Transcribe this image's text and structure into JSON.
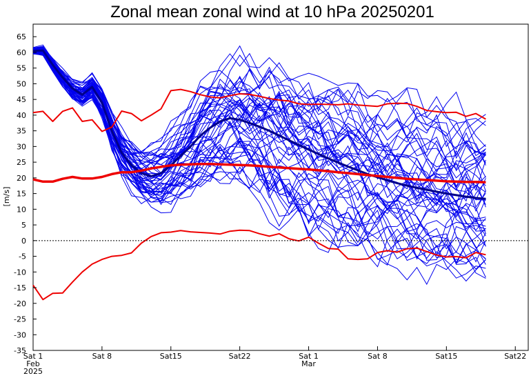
{
  "chart_data": {
    "type": "line",
    "title": "Zonal mean zonal wind at 10 hPa 20250201",
    "xlabel": "",
    "ylabel": "[m/s]",
    "ylim": [
      -35,
      69
    ],
    "xlim_days": [
      0,
      50
    ],
    "grid": false,
    "legend": "none",
    "yticks": [
      65,
      60,
      55,
      50,
      45,
      40,
      35,
      30,
      25,
      20,
      15,
      10,
      5,
      0,
      -5,
      -10,
      -15,
      -20,
      -25,
      -30,
      -35
    ],
    "yticklabels": [
      "65",
      "60",
      "55",
      "50",
      "45",
      "40",
      "35",
      "30",
      "25",
      "20",
      "15",
      "10",
      "5",
      "0",
      "-5",
      "-10",
      "-15",
      "-20",
      "-25",
      "-30",
      "-35"
    ],
    "xticks": [
      {
        "day": 0,
        "lines": [
          "Sat 1",
          "Feb",
          "2025"
        ]
      },
      {
        "day": 7,
        "lines": [
          "Sat 8"
        ]
      },
      {
        "day": 14,
        "lines": [
          "Sat15"
        ]
      },
      {
        "day": 21,
        "lines": [
          "Sat22"
        ]
      },
      {
        "day": 28,
        "lines": [
          "Sat 1",
          "Mar"
        ]
      },
      {
        "day": 35,
        "lines": [
          "Sat 8"
        ]
      },
      {
        "day": 42,
        "lines": [
          "Sat15"
        ]
      },
      {
        "day": 49,
        "lines": [
          "Sat22"
        ]
      }
    ],
    "colors": {
      "ensemble": "#0000ee",
      "mean": "#00008b",
      "climatology": "#ee0000",
      "zero": "#000000"
    },
    "series": [
      {
        "role": "ensemble-mean",
        "x": [
          0,
          1,
          2,
          3,
          4,
          5,
          6,
          7,
          8,
          9,
          10,
          11,
          12,
          13,
          14,
          15,
          16,
          17,
          18,
          19,
          20,
          21,
          22,
          23,
          24,
          25,
          26,
          27,
          28,
          29,
          30,
          31,
          32,
          33,
          34,
          35,
          36,
          37,
          38,
          39,
          40,
          41,
          42,
          43,
          44,
          45,
          46
        ],
        "y": [
          60.5,
          60.6,
          56,
          52,
          48.5,
          46.5,
          49,
          44,
          35,
          28,
          24,
          21.5,
          20.5,
          21.5,
          24,
          27,
          30,
          33.5,
          36,
          38,
          39,
          38.5,
          37.5,
          36.3,
          35,
          33.5,
          32,
          30.5,
          29,
          27.6,
          26.2,
          24.9,
          23.6,
          22.4,
          21.2,
          20.2,
          19.2,
          18.3,
          17.5,
          16.8,
          16.2,
          15.6,
          15,
          14.5,
          14.0,
          13.6,
          13.3
        ]
      },
      {
        "role": "climatology-mean",
        "x": [
          0,
          1,
          2,
          3,
          4,
          5,
          6,
          7,
          8,
          9,
          10,
          11,
          12,
          13,
          14,
          15,
          16,
          17,
          18,
          19,
          20,
          21,
          22,
          23,
          24,
          25,
          26,
          27,
          28,
          29,
          30,
          31,
          32,
          33,
          34,
          35,
          36,
          37,
          38,
          39,
          40,
          41,
          42,
          43,
          44,
          45,
          46
        ],
        "y": [
          19.5,
          18.8,
          18.8,
          19.7,
          20.3,
          19.8,
          19.8,
          20.3,
          21.2,
          21.8,
          21.8,
          22.3,
          23.0,
          23.5,
          24.0,
          24.2,
          24.3,
          24.4,
          24.4,
          24.3,
          24.2,
          24.1,
          24.0,
          23.8,
          23.5,
          23.3,
          23.1,
          22.9,
          22.7,
          22.4,
          22.1,
          21.8,
          21.5,
          21.2,
          20.9,
          20.6,
          20.3,
          20.0,
          19.7,
          19.5,
          19.3,
          19.1,
          18.9,
          18.8,
          18.7,
          18.7,
          18.6
        ]
      },
      {
        "role": "climatology-max",
        "x": [
          0,
          1,
          2,
          3,
          4,
          5,
          6,
          7,
          8,
          9,
          10,
          11,
          12,
          13,
          14,
          15,
          16,
          17,
          18,
          19,
          20,
          21,
          22,
          23,
          24,
          25,
          26,
          27,
          28,
          29,
          30,
          31,
          32,
          33,
          34,
          35,
          36,
          37,
          38,
          39,
          40,
          41,
          42,
          43,
          44,
          45,
          46
        ],
        "y": [
          40.8,
          41.2,
          38,
          41.2,
          42.3,
          38,
          38.5,
          34.8,
          36.2,
          41.3,
          40.5,
          38.2,
          40,
          42,
          47.8,
          48.2,
          47.5,
          46.5,
          45.8,
          45.5,
          46.2,
          46.8,
          46.6,
          46,
          45.3,
          44.8,
          44.5,
          43.6,
          43.4,
          43.5,
          43.4,
          43.3,
          43.6,
          43.2,
          43,
          42.8,
          43.6,
          43.8,
          43.7,
          42.8,
          41.5,
          41.1,
          40.8,
          40.9,
          39.6,
          40.5,
          38.7
        ]
      },
      {
        "role": "climatology-min",
        "x": [
          0,
          1,
          2,
          3,
          4,
          5,
          6,
          7,
          8,
          9,
          10,
          11,
          12,
          13,
          14,
          15,
          16,
          17,
          18,
          19,
          20,
          21,
          22,
          23,
          24,
          25,
          26,
          27,
          28,
          29,
          30,
          31,
          32,
          33,
          34,
          35,
          36,
          37,
          38,
          39,
          40,
          41,
          42,
          43,
          44,
          45,
          46
        ],
        "y": [
          -14.2,
          -18.8,
          -16.8,
          -16.7,
          -13.2,
          -10,
          -7.5,
          -6,
          -5,
          -4.7,
          -3.9,
          -0.8,
          1.3,
          2.5,
          2.7,
          3.2,
          2.8,
          2.6,
          2.4,
          2.1,
          3,
          3.3,
          3.2,
          2.2,
          1.4,
          2.2,
          0.6,
          -0.1,
          1.1,
          -0.8,
          -2.5,
          -2.7,
          -5.8,
          -6,
          -5.8,
          -3.8,
          -3.2,
          -3.7,
          -2.6,
          -2.4,
          -3.5,
          -4.6,
          -5.2,
          -5.1,
          -5.5,
          -3.8,
          -4.5
        ]
      }
    ],
    "ensemble_members": 51
  }
}
